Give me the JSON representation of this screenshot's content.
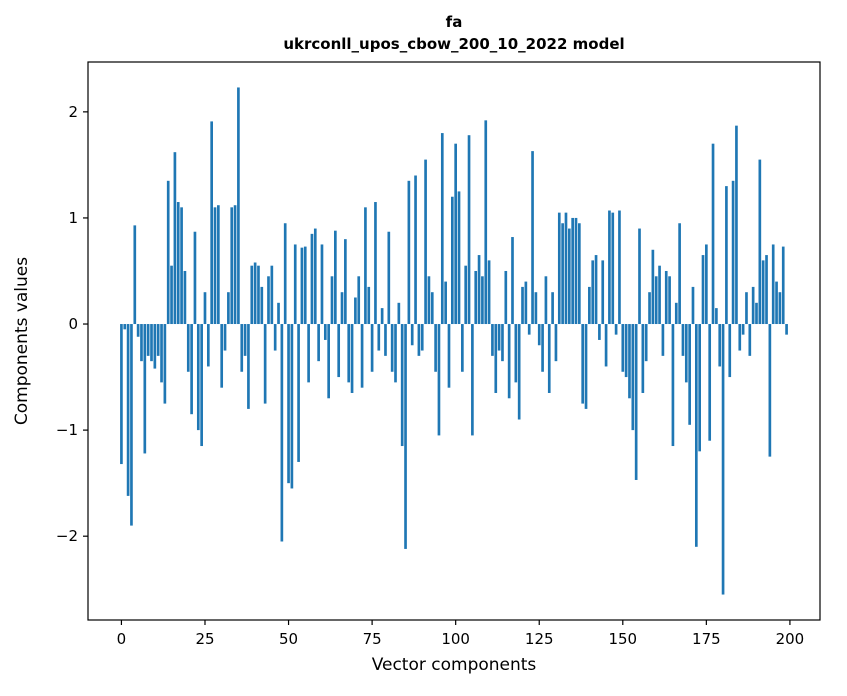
{
  "chart_data": {
    "type": "bar",
    "title_line1": "fa",
    "title_line2": "ukrconll_upos_cbow_200_10_2022 model",
    "xlabel": "Vector components",
    "ylabel": "Components values",
    "x_ticks": [
      0,
      25,
      50,
      75,
      100,
      125,
      150,
      175,
      200
    ],
    "y_ticks": [
      -2,
      -1,
      0,
      1,
      2
    ],
    "xlim": [
      -10,
      209
    ],
    "ylim": [
      -2.79,
      2.47
    ],
    "bar_color": "#1f77b4",
    "spine_color": "#000000",
    "background_color": "#ffffff",
    "x_start": 0,
    "bar_width_data": 0.8,
    "values": [
      -1.32,
      -0.05,
      -1.62,
      -1.9,
      0.93,
      -0.12,
      -0.35,
      -1.22,
      -0.3,
      -0.35,
      -0.42,
      -0.3,
      -0.55,
      -0.75,
      1.35,
      0.55,
      1.62,
      1.15,
      1.1,
      0.5,
      -0.45,
      -0.85,
      0.87,
      -1.0,
      -1.15,
      0.3,
      -0.4,
      1.91,
      1.1,
      1.12,
      -0.6,
      -0.25,
      0.3,
      1.1,
      1.12,
      2.23,
      -0.45,
      -0.3,
      -0.8,
      0.55,
      0.58,
      0.55,
      0.35,
      -0.75,
      0.45,
      0.55,
      -0.25,
      0.2,
      -2.05,
      0.95,
      -1.5,
      -1.55,
      0.75,
      -1.3,
      0.72,
      0.73,
      -0.55,
      0.85,
      0.9,
      -0.35,
      0.75,
      -0.15,
      -0.7,
      0.45,
      0.88,
      -0.5,
      0.3,
      0.8,
      -0.55,
      -0.65,
      0.25,
      0.45,
      -0.6,
      1.1,
      0.35,
      -0.45,
      1.15,
      -0.25,
      0.15,
      -0.3,
      0.87,
      -0.45,
      -0.55,
      0.2,
      -1.15,
      -2.12,
      1.35,
      -0.2,
      1.4,
      -0.3,
      -0.25,
      1.55,
      0.45,
      0.3,
      -0.45,
      -1.05,
      1.8,
      0.4,
      -0.6,
      1.2,
      1.7,
      1.25,
      -0.45,
      0.55,
      1.78,
      -1.05,
      0.5,
      0.65,
      0.45,
      1.92,
      0.6,
      -0.3,
      -0.65,
      -0.25,
      -0.35,
      0.5,
      -0.7,
      0.82,
      -0.55,
      -0.9,
      0.35,
      0.4,
      -0.1,
      1.63,
      0.3,
      -0.2,
      -0.45,
      0.45,
      -0.65,
      0.3,
      -0.35,
      1.05,
      0.95,
      1.05,
      0.9,
      1.0,
      1.0,
      0.95,
      -0.75,
      -0.8,
      0.35,
      0.6,
      0.65,
      -0.15,
      0.6,
      -0.4,
      1.07,
      1.05,
      -0.1,
      1.07,
      -0.45,
      -0.5,
      -0.7,
      -1.0,
      -1.47,
      0.9,
      -0.65,
      -0.35,
      0.3,
      0.7,
      0.45,
      0.55,
      -0.3,
      0.5,
      0.45,
      -1.15,
      0.2,
      0.95,
      -0.3,
      -0.55,
      -0.95,
      0.35,
      -2.1,
      -1.2,
      0.65,
      0.75,
      -1.1,
      1.7,
      0.15,
      -0.4,
      -2.55,
      1.3,
      -0.5,
      1.35,
      1.87,
      -0.25,
      -0.1,
      0.3,
      -0.3,
      0.35,
      0.2,
      1.55,
      0.6,
      0.65,
      -1.25,
      0.75,
      0.4,
      0.3,
      0.73,
      -0.1
    ]
  }
}
